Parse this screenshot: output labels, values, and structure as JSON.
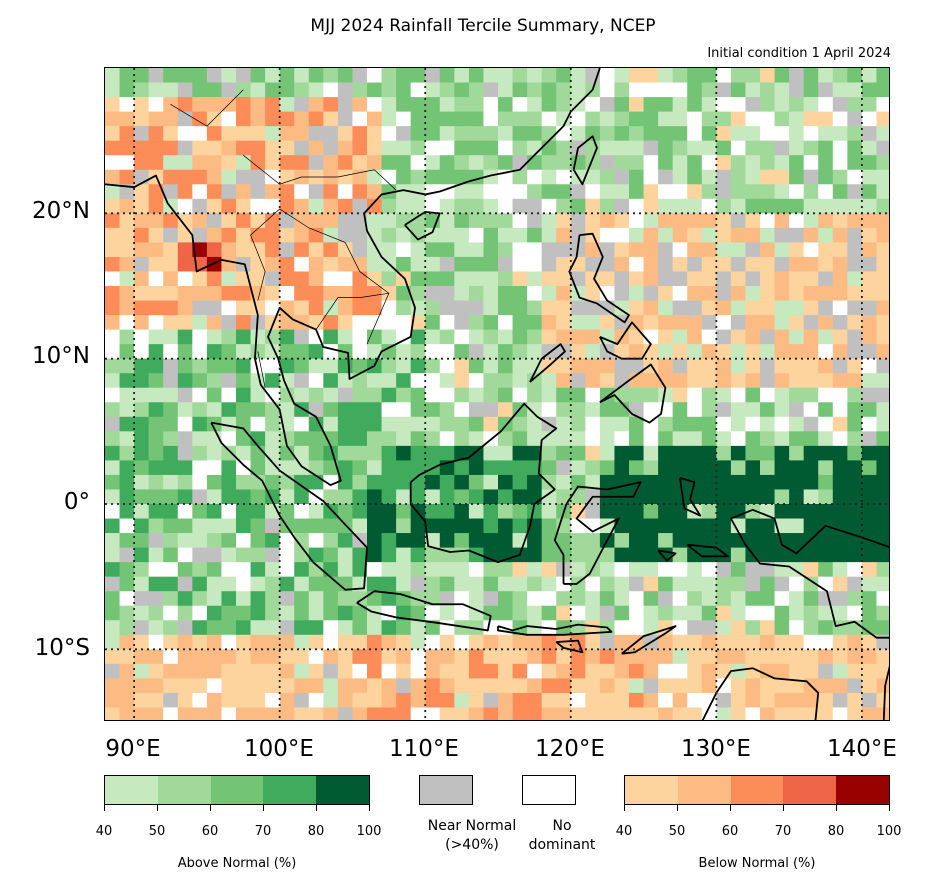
{
  "title": "MJJ 2024 Rainfall Tercile Summary, NCEP",
  "subtitle": "Initial condition 1 April 2024",
  "map": {
    "lon_range": [
      88,
      142
    ],
    "lat_range": [
      -15,
      30
    ],
    "lat_labels": [
      "20°N",
      "10°N",
      "0°",
      "10°S"
    ],
    "lon_labels": [
      "90°E",
      "100°E",
      "110°E",
      "120°E",
      "130°E",
      "140°E"
    ],
    "gridlines": "dotted"
  },
  "legend": {
    "above": {
      "label": "Above Normal (%)",
      "ticks": [
        "40",
        "50",
        "60",
        "70",
        "80",
        "100"
      ],
      "colors": [
        "#c7e9c0",
        "#a1d99b",
        "#74c476",
        "#41ab5d",
        "#005a32"
      ]
    },
    "near_normal": {
      "label_line1": "Near Normal",
      "label_line2": "(>40%)",
      "color": "#c0c0c0"
    },
    "no_dominant": {
      "label_line1": "No",
      "label_line2": "dominant",
      "color": "#ffffff"
    },
    "below": {
      "label": "Below Normal (%)",
      "ticks": [
        "40",
        "50",
        "60",
        "70",
        "80",
        "100"
      ],
      "colors": [
        "#fdd49e",
        "#fdbb84",
        "#fc8d59",
        "#ef6548",
        "#990000"
      ]
    }
  }
}
